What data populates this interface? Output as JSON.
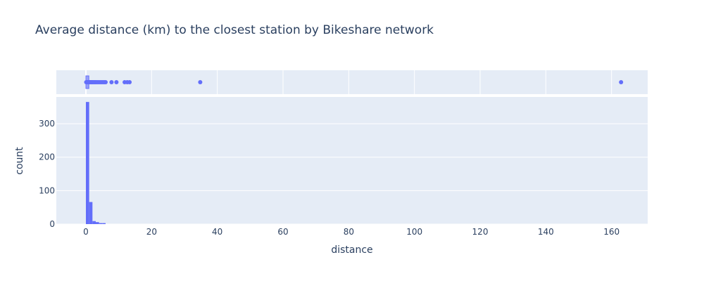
{
  "chart_data": {
    "type": "histogram",
    "title": "Average distance (km) to the closest station by Bikeshare network",
    "xlabel": "distance",
    "ylabel": "count",
    "xlim": [
      -9,
      171
    ],
    "ylim": [
      0,
      380
    ],
    "x_ticks": [
      "0",
      "20",
      "40",
      "60",
      "80",
      "100",
      "120",
      "140",
      "160"
    ],
    "x_tick_values": [
      0,
      20,
      40,
      60,
      80,
      100,
      120,
      140,
      160
    ],
    "y_ticks": [
      "0",
      "100",
      "200",
      "300"
    ],
    "y_tick_values": [
      0,
      100,
      200,
      300
    ],
    "grid": true,
    "color": "#636efa",
    "bins": [
      {
        "x0": 0,
        "x1": 1,
        "count": 365
      },
      {
        "x0": 1,
        "x1": 2,
        "count": 66
      },
      {
        "x0": 2,
        "x1": 3,
        "count": 9
      },
      {
        "x0": 3,
        "x1": 4,
        "count": 6
      },
      {
        "x0": 4,
        "x1": 5,
        "count": 3
      },
      {
        "x0": 5,
        "x1": 6,
        "count": 3
      }
    ],
    "rug": {
      "type": "box-points",
      "points": [
        0.1,
        0.2,
        0.3,
        0.4,
        0.5,
        0.6,
        0.7,
        0.8,
        0.9,
        1.0,
        1.2,
        1.4,
        1.6,
        1.8,
        2.0,
        2.3,
        2.6,
        2.9,
        3.2,
        3.6,
        4.0,
        4.4,
        4.8,
        5.2,
        5.6,
        6.0,
        7.8,
        9.3,
        11.8,
        12.6,
        13.3,
        34.8,
        162.9
      ]
    }
  }
}
